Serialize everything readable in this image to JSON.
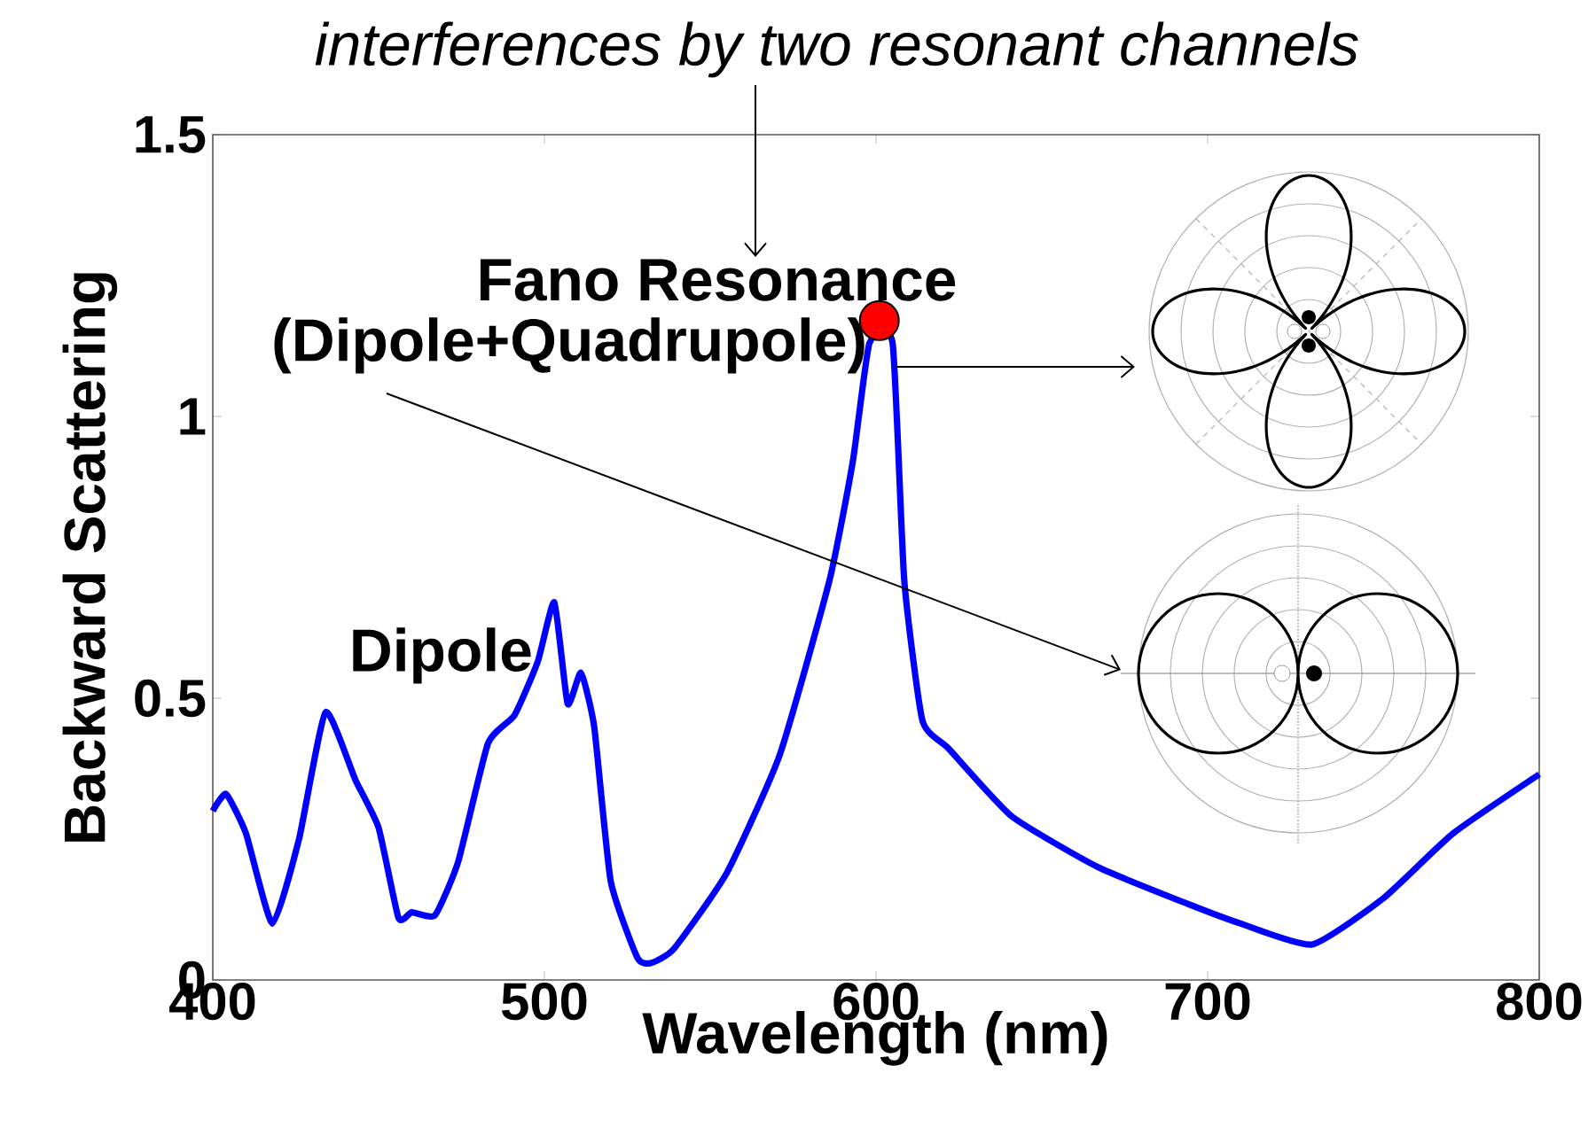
{
  "chart_data": {
    "type": "line",
    "title": "interferences by two resonant channels",
    "xlabel": "Wavelength (nm)",
    "ylabel": "Backward Scattering",
    "xlim": [
      400,
      800
    ],
    "ylim": [
      0,
      1.5
    ],
    "xticks": [
      400,
      500,
      600,
      700,
      800
    ],
    "yticks": [
      0,
      0.5,
      1,
      1.5
    ],
    "series": [
      {
        "color": "#0000ff",
        "x": [
          400,
          404,
          410,
          418,
          426,
          434,
          443,
          450,
          456,
          460,
          467,
          474,
          483,
          491,
          498,
          503,
          507,
          511,
          515,
          520,
          528,
          532,
          539,
          555,
          571,
          586,
          593,
          598,
          601,
          605,
          608.5,
          614,
          622,
          641,
          667,
          694,
          710,
          731.5,
          753,
          774,
          800
        ],
        "values": [
          0.3,
          0.33,
          0.26,
          0.1,
          0.25,
          0.475,
          0.355,
          0.27,
          0.11,
          0.12,
          0.115,
          0.21,
          0.42,
          0.47,
          0.565,
          0.67,
          0.49,
          0.545,
          0.45,
          0.175,
          0.04,
          0.03,
          0.055,
          0.19,
          0.4,
          0.71,
          0.92,
          1.13,
          null,
          1.13,
          0.71,
          0.46,
          0.41,
          0.29,
          0.2,
          0.135,
          0.1,
          0.063,
          0.145,
          0.26,
          0.365
        ]
      },
      {
        "type": "scatter",
        "color": "#ff0000",
        "marker": "circle",
        "x": [
          601
        ],
        "values": [
          1.17
        ]
      }
    ],
    "annotations": [
      {
        "text": "Dipole",
        "x": 503,
        "y": 0.67
      },
      "Fano Resonance",
      "(Dipole+Quadrupole)"
    ]
  }
}
